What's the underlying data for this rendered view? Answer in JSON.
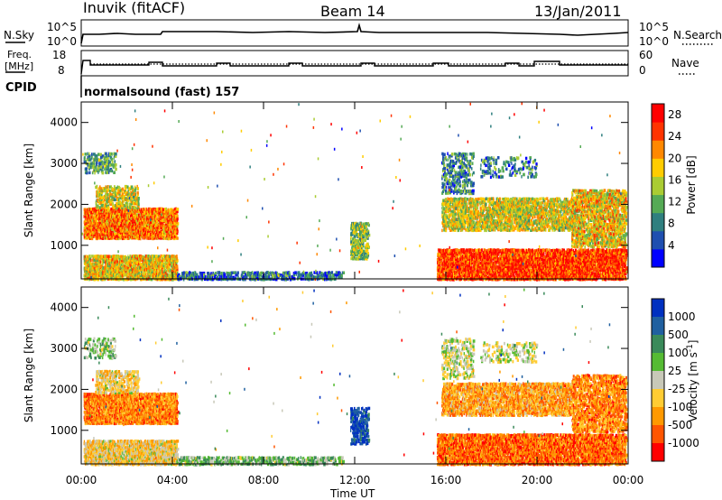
{
  "header": {
    "station": "Inuvik (fitACF)",
    "beam": "Beam 14",
    "date": "13/Jan/2011"
  },
  "strip": {
    "nsky_label": "N.Sky",
    "nsearch_label": "N.Search",
    "nsky_ticks": [
      "10^5",
      "10^0"
    ],
    "nsearch_ticks": [
      "10^5",
      "10^0"
    ],
    "freq_label_1": "Freq.",
    "freq_label_2": "[MHz]",
    "freq_ticks": [
      "18",
      "8"
    ],
    "nave_label": "Nave",
    "nave_ticks": [
      "60",
      "0"
    ],
    "cpid_label": "CPID",
    "cpid_text": "normalsound (fast) 157"
  },
  "chart_data": [
    {
      "type": "heatmap",
      "title": "",
      "xlabel": "Time UT",
      "ylabel": "Slant Range [km]",
      "xlim": [
        0,
        24
      ],
      "ylim": [
        180,
        4500
      ],
      "x_ticks": [
        "00:00",
        "04:00",
        "08:00",
        "12:00",
        "16:00",
        "20:00",
        "00:00"
      ],
      "y_ticks": [
        "1000",
        "2000",
        "3000",
        "4000"
      ],
      "colorbar": {
        "label": "Power [dB]",
        "ticks": [
          "4",
          "8",
          "12",
          "16",
          "20",
          "24",
          "28"
        ],
        "range": [
          0,
          30
        ],
        "colors": [
          "#0000ff",
          "#1f4fb0",
          "#2f7f7f",
          "#55aa55",
          "#aacc33",
          "#ffcc00",
          "#ff8800",
          "#ff3300",
          "#ff0000"
        ]
      }
    },
    {
      "type": "heatmap",
      "title": "",
      "xlabel": "Time UT",
      "ylabel": "Slant Range [km]",
      "xlim": [
        0,
        24
      ],
      "ylim": [
        180,
        4500
      ],
      "x_ticks": [
        "00:00",
        "04:00",
        "08:00",
        "12:00",
        "16:00",
        "20:00",
        "00:00"
      ],
      "y_ticks": [
        "1000",
        "2000",
        "3000",
        "4000"
      ],
      "colorbar": {
        "label": "Velocity [m s^-1]",
        "ticks": [
          "1000",
          "500",
          "100",
          "25",
          "-25",
          "-100",
          "-500",
          "-1000"
        ],
        "colors": [
          "#0030c0",
          "#2060a0",
          "#3a8a5a",
          "#55bb33",
          "#c8c8b8",
          "#ffcc33",
          "#ff9900",
          "#ff5500",
          "#ff0000"
        ]
      }
    }
  ]
}
